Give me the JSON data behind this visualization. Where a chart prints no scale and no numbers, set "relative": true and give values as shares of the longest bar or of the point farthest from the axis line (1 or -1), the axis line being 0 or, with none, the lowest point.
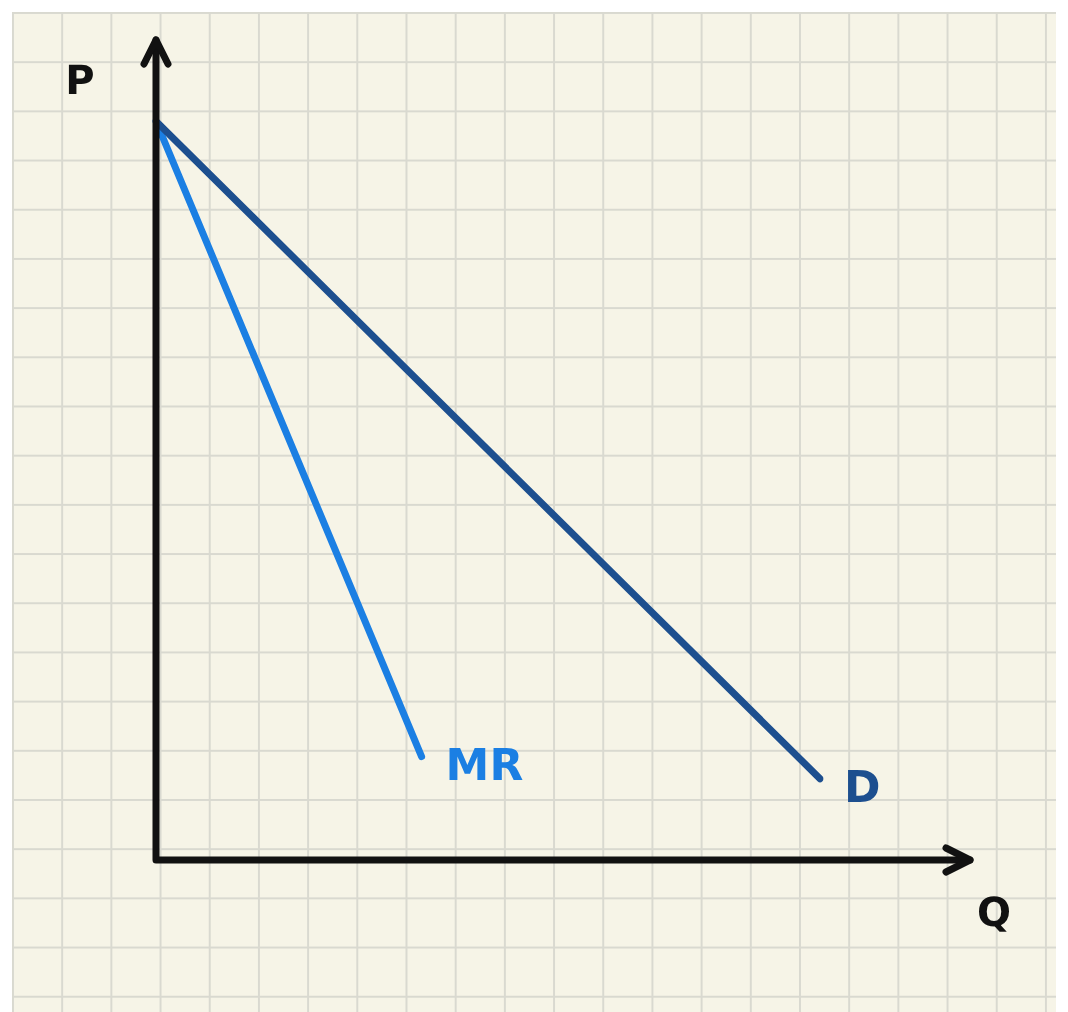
{
  "chart_data": {
    "type": "line",
    "relative": true,
    "xlabel": "Q",
    "ylabel": "P",
    "legend": false,
    "marker": "none",
    "line_style": "solid",
    "categories": [
      null,
      null,
      null,
      null,
      null,
      null,
      null,
      null,
      null,
      null,
      null
    ],
    "series": [
      {
        "name": "D",
        "color": "#1d4f8f",
        "values": [
          1,
          null,
          null,
          null,
          null,
          null,
          null,
          null,
          null,
          null,
          0.11
        ]
      },
      {
        "name": "MR",
        "color": "#1b7fe3",
        "values": [
          1,
          null,
          null,
          null,
          0.14,
          null,
          null,
          null,
          null,
          null,
          null
        ]
      }
    ]
  }
}
